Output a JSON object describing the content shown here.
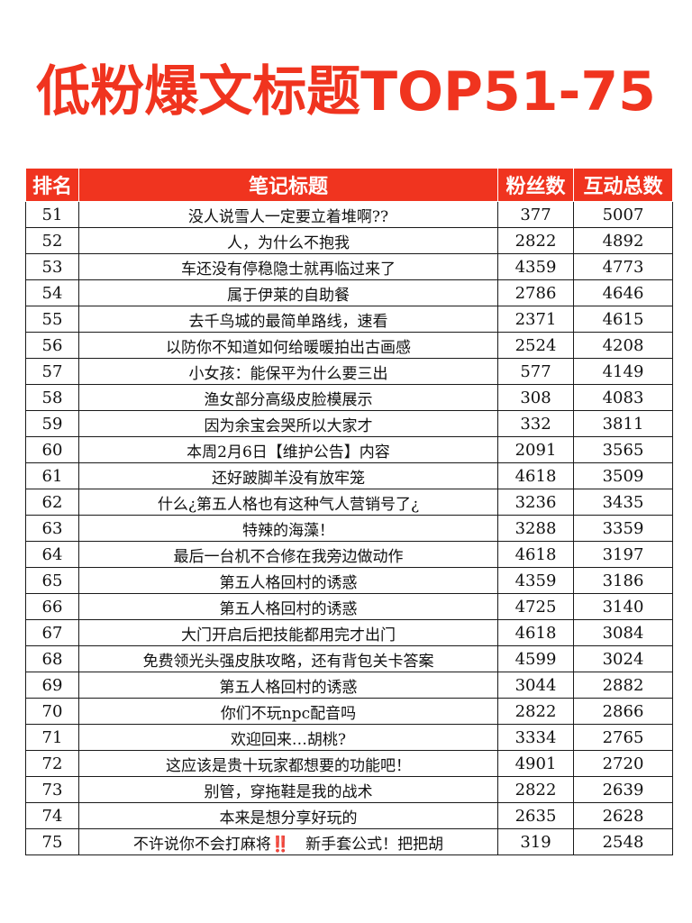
{
  "title": "低粉爆文标题TOP51-75",
  "colors": {
    "accent": "#f0341f",
    "header_bg": "#f0341f",
    "header_text": "#ffffff",
    "body_text": "#111111",
    "border": "#1a1a1a"
  },
  "table": {
    "headers": {
      "rank": "排名",
      "title": "笔记标题",
      "fans": "粉丝数",
      "interactions": "互动总数"
    },
    "rows": [
      {
        "rank": "51",
        "title": "没人说雪人一定要立着堆啊??",
        "fans": "377",
        "interactions": "5007"
      },
      {
        "rank": "52",
        "title": "人，为什么不抱我",
        "fans": "2822",
        "interactions": "4892"
      },
      {
        "rank": "53",
        "title": "车还没有停稳隐士就再临过来了",
        "fans": "4359",
        "interactions": "4773"
      },
      {
        "rank": "54",
        "title": "属于伊莱的自助餐",
        "fans": "2786",
        "interactions": "4646"
      },
      {
        "rank": "55",
        "title": "去千鸟城的最简单路线，速看",
        "fans": "2371",
        "interactions": "4615"
      },
      {
        "rank": "56",
        "title": "以防你不知道如何给暖暖拍出古画感",
        "fans": "2524",
        "interactions": "4208"
      },
      {
        "rank": "57",
        "title": "小女孩：能保平为什么要三出",
        "fans": "577",
        "interactions": "4149"
      },
      {
        "rank": "58",
        "title": "渔女部分高级皮脸模展示",
        "fans": "308",
        "interactions": "4083"
      },
      {
        "rank": "59",
        "title": "因为余宝会哭所以大家才",
        "fans": "332",
        "interactions": "3811"
      },
      {
        "rank": "60",
        "title": "本周2月6日【维护公告】内容",
        "fans": "2091",
        "interactions": "3565"
      },
      {
        "rank": "61",
        "title": "还好跛脚羊没有放牢笼",
        "fans": "4618",
        "interactions": "3509"
      },
      {
        "rank": "62",
        "title": "什么¿第五人格也有这种气人营销号了¿",
        "fans": "3236",
        "interactions": "3435"
      },
      {
        "rank": "63",
        "title": "特辣的海藻！",
        "fans": "3288",
        "interactions": "3359"
      },
      {
        "rank": "64",
        "title": "最后一台机不合修在我旁边做动作",
        "fans": "4618",
        "interactions": "3197"
      },
      {
        "rank": "65",
        "title": "第五人格回村的诱惑",
        "fans": "4359",
        "interactions": "3186"
      },
      {
        "rank": "66",
        "title": "第五人格回村的诱惑",
        "fans": "4725",
        "interactions": "3140"
      },
      {
        "rank": "67",
        "title": "大门开启后把技能都用完才出门",
        "fans": "4618",
        "interactions": "3084"
      },
      {
        "rank": "68",
        "title": "免费领光头强皮肤攻略，还有背包关卡答案",
        "fans": "4599",
        "interactions": "3024"
      },
      {
        "rank": "69",
        "title": "第五人格回村的诱惑",
        "fans": "3044",
        "interactions": "2882"
      },
      {
        "rank": "70",
        "title": "你们不玩npc配音吗",
        "fans": "2822",
        "interactions": "2866"
      },
      {
        "rank": "71",
        "title": "欢迎回来…胡桃?",
        "fans": "3334",
        "interactions": "2765"
      },
      {
        "rank": "72",
        "title": "这应该是贵十玩家都想要的功能吧！",
        "fans": "4901",
        "interactions": "2720"
      },
      {
        "rank": "73",
        "title": "别管，穿拖鞋是我的战术",
        "fans": "2822",
        "interactions": "2639"
      },
      {
        "rank": "74",
        "title": "本来是想分享好玩的",
        "fans": "2635",
        "interactions": "2628"
      },
      {
        "rank": "75",
        "title": "不许说你不会打麻将‼️　新手套公式！把把胡",
        "fans": "319",
        "interactions": "2548"
      }
    ]
  }
}
